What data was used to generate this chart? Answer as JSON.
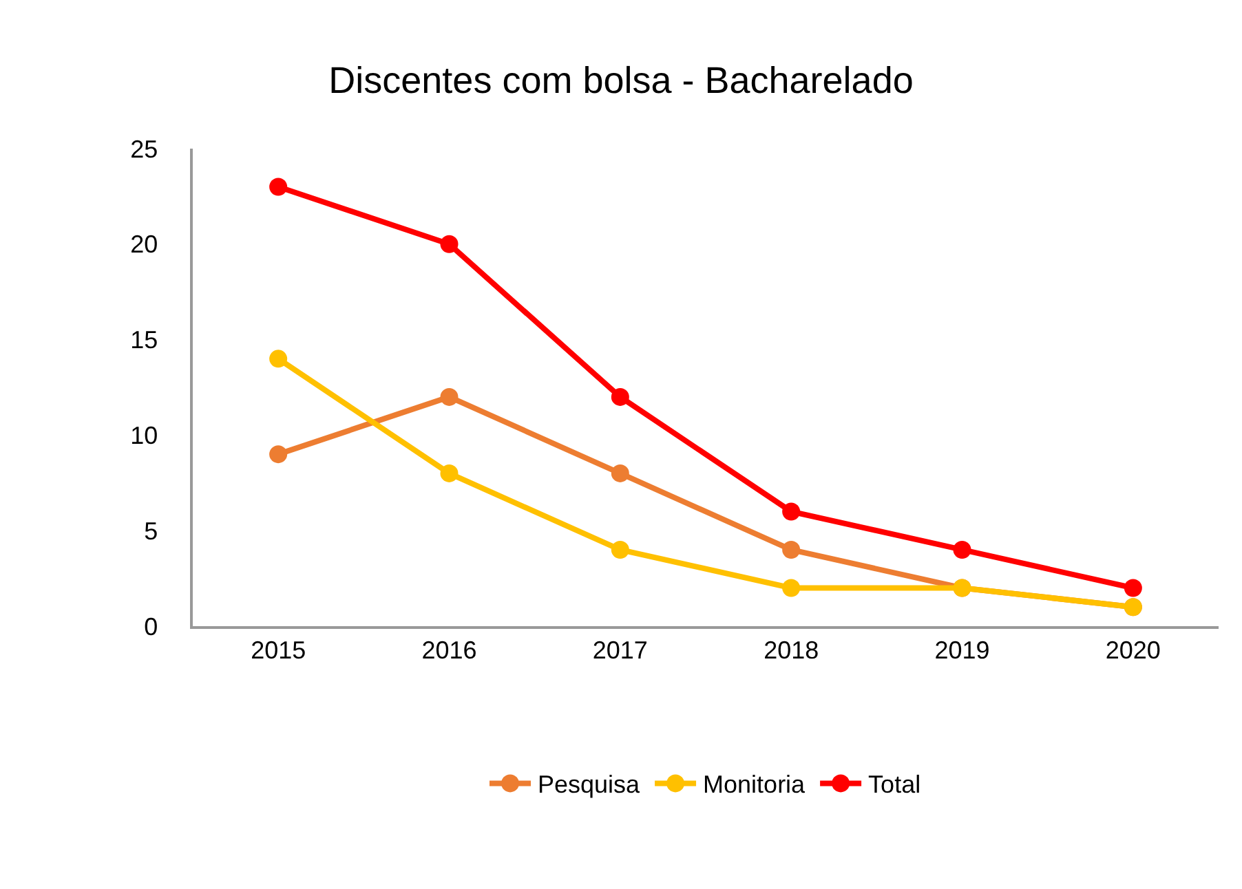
{
  "chart_data": {
    "type": "line",
    "title": "Discentes com bolsa - Bacharelado",
    "categories": [
      "2015",
      "2016",
      "2017",
      "2018",
      "2019",
      "2020"
    ],
    "series": [
      {
        "name": "Pesquisa",
        "color": "#ed7d31",
        "values": [
          9,
          12,
          8,
          4,
          2,
          1
        ]
      },
      {
        "name": "Monitoria",
        "color": "#ffc000",
        "values": [
          14,
          8,
          4,
          2,
          2,
          1
        ]
      },
      {
        "name": "Total",
        "color": "#ff0000",
        "values": [
          23,
          20,
          12,
          6,
          4,
          2
        ]
      }
    ],
    "ylim": [
      0,
      25
    ],
    "yticks": [
      0,
      5,
      10,
      15,
      20,
      25
    ],
    "legend": "bottom",
    "marker": "circle",
    "line_style": "solid"
  }
}
